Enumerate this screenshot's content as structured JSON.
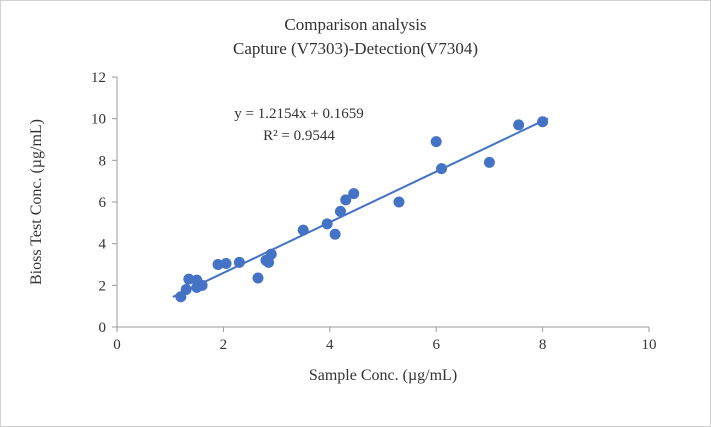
{
  "chart_data": {
    "type": "scatter",
    "title_line1": "Comparison analysis",
    "title_line2": "Capture (V7303)-Detection(V7304)",
    "xlabel": "Sample  Conc. (µg/mL)",
    "ylabel": "Bioss Test Conc. (µg/mL)",
    "equation": "y = 1.2154x + 0.1659",
    "r_squared": "R² = 0.9544",
    "xlim": [
      0,
      10
    ],
    "ylim": [
      0,
      12
    ],
    "xticks": [
      0,
      2,
      4,
      6,
      8,
      10
    ],
    "yticks": [
      0,
      2,
      4,
      6,
      8,
      10,
      12
    ],
    "grid": false,
    "legend": "none",
    "point_color": "#4472c4",
    "line_color": "#4472c4",
    "axis_color": "#9b9b9b",
    "trendline": {
      "slope": 1.2154,
      "intercept": 0.1659,
      "x_start": 1.05,
      "x_end": 8.1
    },
    "points": [
      [
        1.2,
        1.45
      ],
      [
        1.3,
        1.8
      ],
      [
        1.35,
        2.3
      ],
      [
        1.5,
        2.25
      ],
      [
        1.5,
        1.9
      ],
      [
        1.6,
        2.0
      ],
      [
        1.9,
        3.0
      ],
      [
        2.05,
        3.05
      ],
      [
        2.3,
        3.1
      ],
      [
        2.65,
        2.35
      ],
      [
        2.8,
        3.2
      ],
      [
        2.85,
        3.1
      ],
      [
        2.9,
        3.5
      ],
      [
        3.5,
        4.65
      ],
      [
        3.95,
        4.95
      ],
      [
        4.1,
        4.45
      ],
      [
        4.2,
        5.55
      ],
      [
        4.3,
        6.1
      ],
      [
        4.45,
        6.4
      ],
      [
        5.3,
        6.0
      ],
      [
        6.0,
        8.9
      ],
      [
        6.1,
        7.6
      ],
      [
        7.0,
        7.9
      ],
      [
        7.55,
        9.7
      ],
      [
        8.0,
        9.85
      ]
    ]
  }
}
